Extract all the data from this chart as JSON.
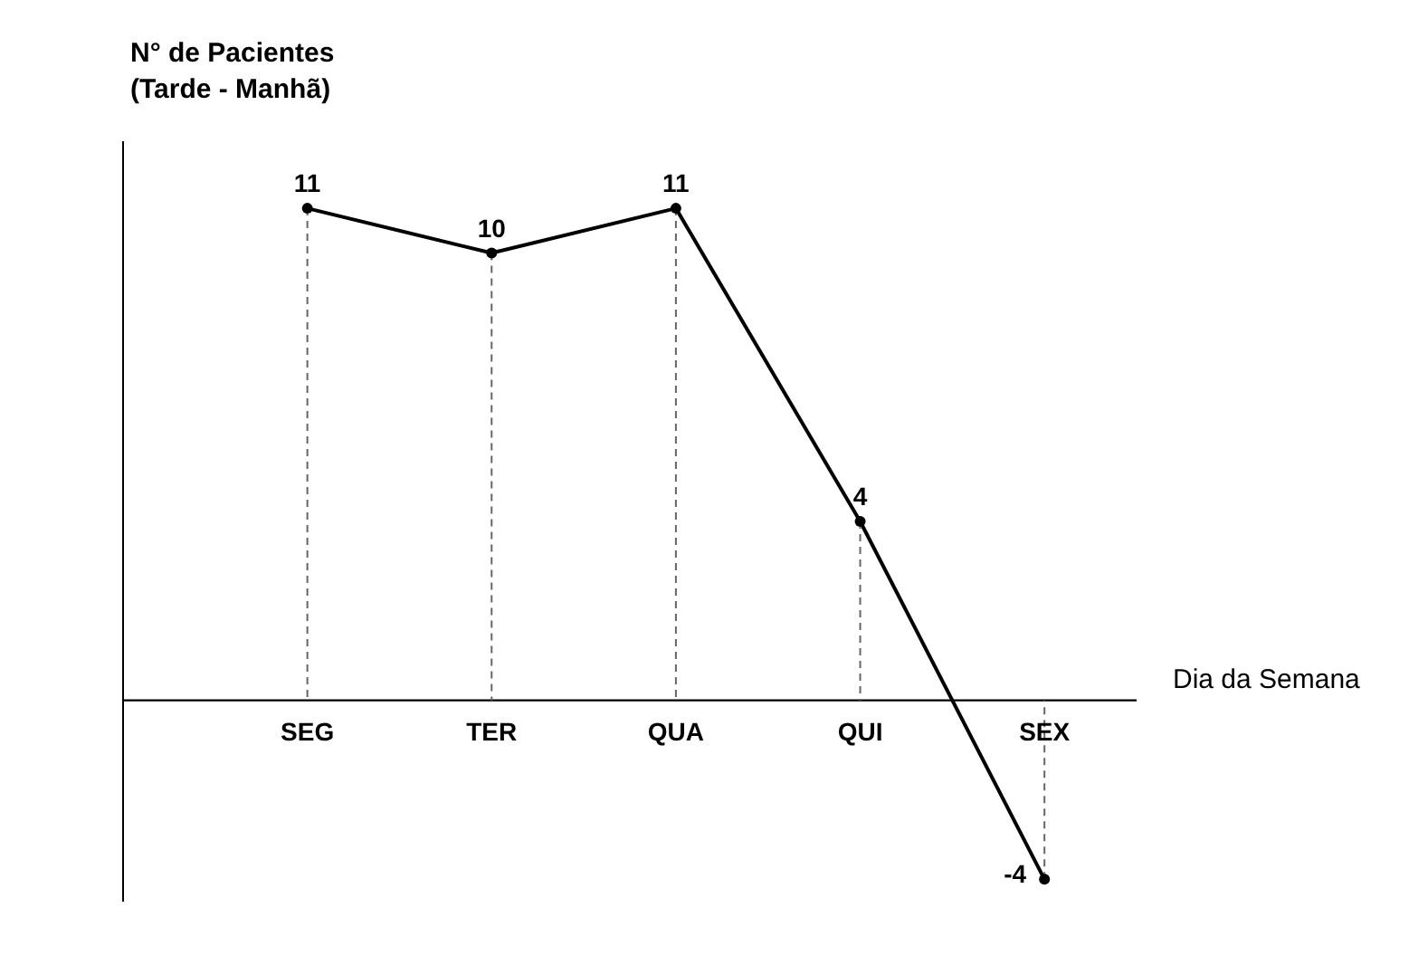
{
  "chart_data": {
    "type": "line",
    "categories": [
      "SEG",
      "TER",
      "QUA",
      "QUI",
      "SEX"
    ],
    "values": [
      11,
      10,
      11,
      4,
      -4
    ],
    "color": "#000000",
    "xlabel": "Dia da Semana",
    "ylabel": "N° de Pacientes\n(Tarde - Manhã)",
    "ylim": [
      -4.5,
      12.5
    ],
    "tick_labels": "x",
    "data_labels": true,
    "marker": "circle",
    "line_style": "solid"
  }
}
